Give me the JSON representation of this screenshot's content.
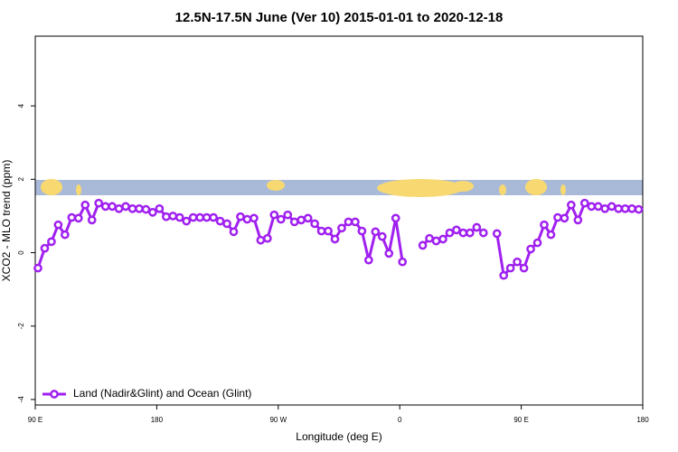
{
  "chart_data": {
    "type": "line",
    "title": "12.5N-17.5N June (Ver 10)   2015-01-01 to 2020-12-18",
    "x_label": "Longitude (deg E)",
    "y_label": "XCO2 - MLO trend (ppm)",
    "x": [
      92,
      97,
      102,
      107,
      112,
      117,
      122,
      127,
      132,
      137,
      142,
      147,
      152,
      157,
      162,
      167,
      172,
      177,
      182,
      187,
      192,
      197,
      202,
      207,
      212,
      217,
      222,
      227,
      232,
      237,
      242,
      247,
      252,
      257,
      262,
      267,
      272,
      277,
      282,
      287,
      292,
      297,
      302,
      307,
      312,
      317,
      322,
      327,
      332,
      337,
      342,
      347,
      352,
      357,
      362,
      367,
      372,
      377,
      382,
      387,
      392,
      397,
      402,
      407,
      412,
      417,
      422,
      427,
      432,
      437,
      442,
      447,
      452,
      457,
      462,
      467,
      472,
      477,
      482,
      487,
      492,
      497,
      502,
      507,
      512,
      517,
      522,
      527,
      532,
      537
    ],
    "series": [
      {
        "name": "Land (Nadir&Glint) and Ocean (Glint)",
        "color": "#a020f0",
        "values": [
          -0.42,
          0.12,
          0.3,
          0.76,
          0.49,
          0.96,
          0.94,
          1.3,
          0.89,
          1.35,
          1.26,
          1.26,
          1.2,
          1.26,
          1.2,
          1.2,
          1.18,
          1.1,
          1.2,
          0.98,
          1.0,
          0.96,
          0.86,
          0.96,
          0.96,
          0.96,
          0.96,
          0.86,
          0.79,
          0.57,
          0.98,
          0.91,
          0.94,
          0.34,
          0.39,
          1.03,
          0.91,
          1.03,
          0.84,
          0.89,
          0.94,
          0.79,
          0.59,
          0.59,
          0.37,
          0.67,
          0.84,
          0.84,
          0.59,
          -0.2,
          0.57,
          0.44,
          -0.02,
          0.94,
          -0.25,
          null,
          null,
          0.2,
          0.39,
          0.32,
          0.37,
          0.54,
          0.62,
          0.54,
          0.54,
          0.69,
          0.54,
          null,
          0.52,
          -0.62,
          -0.42,
          -0.25,
          -0.42,
          0.1,
          0.27,
          0.76,
          0.49,
          0.96,
          0.94,
          1.3,
          0.89,
          1.35,
          1.26,
          1.26,
          1.2,
          1.26,
          1.2,
          1.2,
          1.2,
          1.18
        ]
      }
    ],
    "xlim": [
      90,
      540
    ],
    "xticks": [
      {
        "value": 90,
        "label": "90 E"
      },
      180,
      {
        "value": 270,
        "label": "90 W"
      },
      {
        "value": 360,
        "label": "0"
      },
      {
        "value": 450,
        "label": "90 E"
      },
      {
        "value": 540,
        "label": "180"
      }
    ],
    "ylim": [
      -4.15,
      5.9
    ],
    "yticks": [
      -4,
      -2,
      0,
      2,
      4
    ],
    "legend": "bottom-left"
  }
}
